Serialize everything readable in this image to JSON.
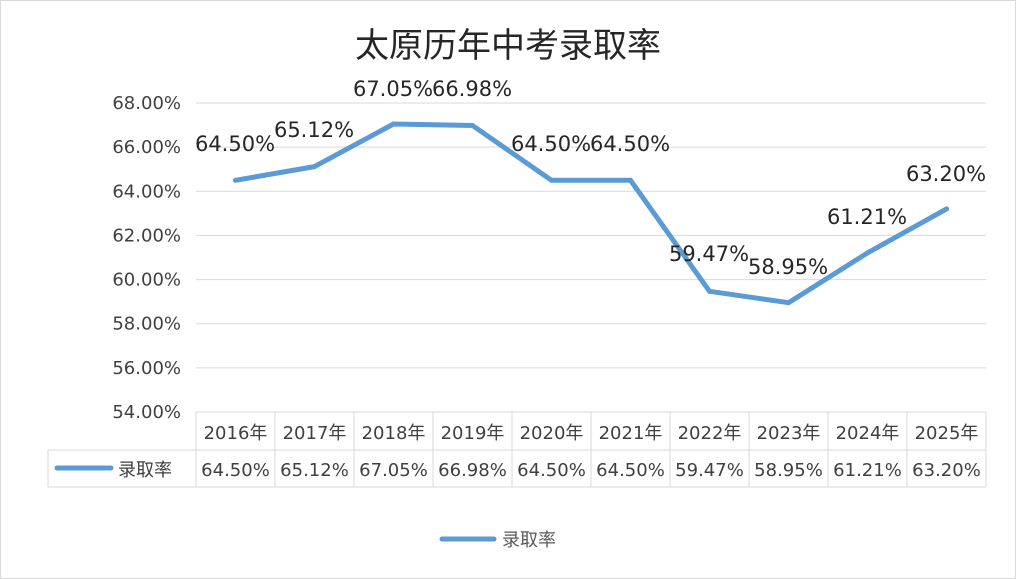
{
  "chart_data": {
    "type": "line",
    "title": "太原历年中考录取率",
    "categories": [
      "2016年",
      "2017年",
      "2018年",
      "2019年",
      "2020年",
      "2021年",
      "2022年",
      "2023年",
      "2024年",
      "2025年"
    ],
    "series": [
      {
        "name": "录取率",
        "values": [
          64.5,
          65.12,
          67.05,
          66.98,
          64.5,
          64.5,
          59.47,
          58.95,
          61.21,
          63.2
        ],
        "labels": [
          "64.50%",
          "65.12%",
          "67.05%",
          "66.98%",
          "64.50%",
          "64.50%",
          "59.47%",
          "58.95%",
          "61.21%",
          "63.20%"
        ]
      }
    ],
    "ylim": [
      54,
      68
    ],
    "yticks": [
      54,
      56,
      58,
      60,
      62,
      64,
      66,
      68
    ],
    "ytick_labels": [
      "54.00%",
      "56.00%",
      "58.00%",
      "60.00%",
      "62.00%",
      "64.00%",
      "66.00%",
      "68.00%"
    ],
    "grid": true,
    "data_table": true,
    "legend_position": "bottom",
    "line_color": "#5B9BD5"
  }
}
